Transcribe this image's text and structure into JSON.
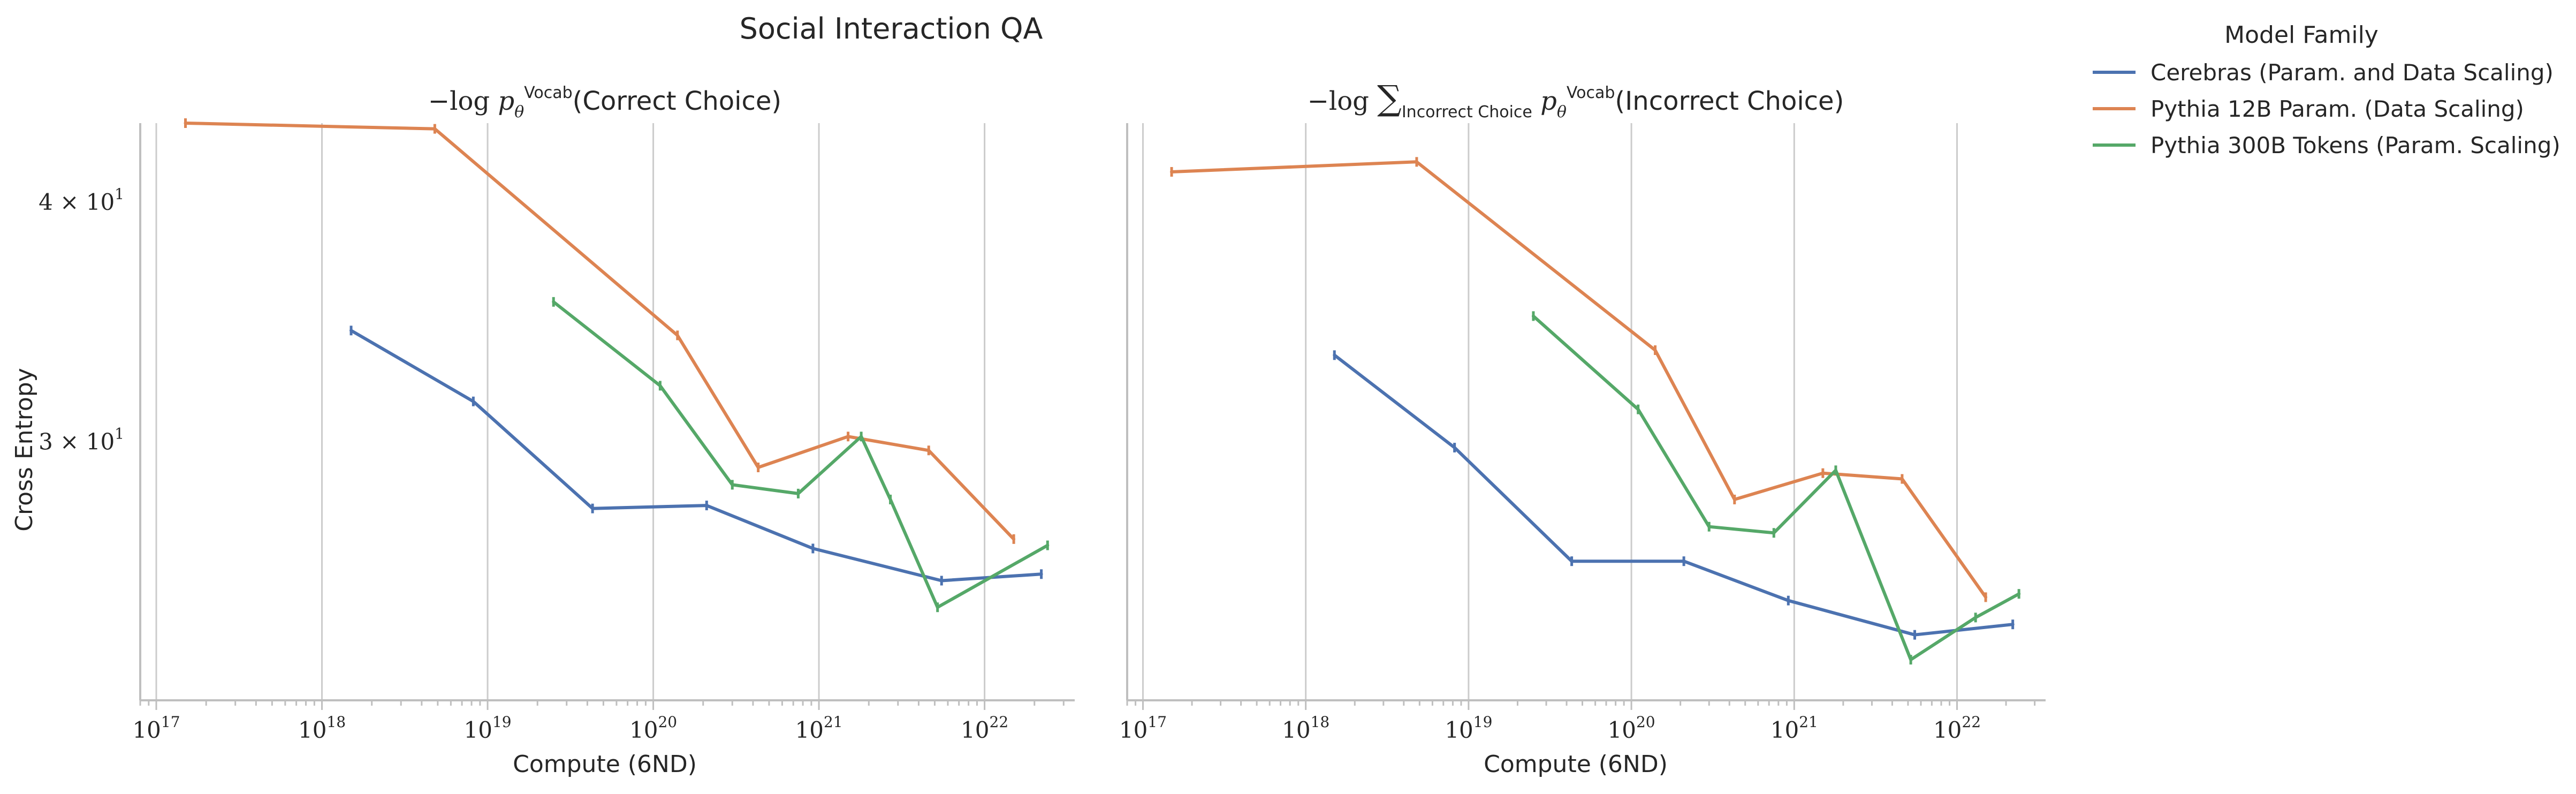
{
  "figure": {
    "title": "Social Interaction QA",
    "ylabel": "Cross Entropy",
    "legend_title": "Model Family",
    "legend_position": "outside-top-right"
  },
  "colors": {
    "Cerebras (Param. and Data Scaling)": "#4c72b0",
    "Pythia 12B Param. (Data Scaling)": "#dd8452",
    "Pythia 300B Tokens (Param. Scaling)": "#55a868",
    "grid": "#cccccc",
    "axis": "#bfbfbf"
  },
  "legend": [
    "Cerebras (Param. and Data Scaling)",
    "Pythia 12B Param. (Data Scaling)",
    "Pythia 300B Tokens (Param. Scaling)"
  ],
  "chart_data": [
    {
      "type": "line",
      "title": "−log p_θ^Vocab(Correct Choice)",
      "xlabel": "Compute (6ND)",
      "ylabel": "Cross Entropy",
      "x_scale": "log",
      "y_scale": "log",
      "xlim": [
        8e+16,
        3.5e+22
      ],
      "ylim": [
        22,
        44
      ],
      "grid": "x-major",
      "x_ticks": [
        1e+17,
        1e+18,
        1e+19,
        1e+20,
        1e+21,
        1e+22
      ],
      "x_tick_labels": [
        [
          "10",
          "17"
        ],
        [
          "10",
          "18"
        ],
        [
          "10",
          "19"
        ],
        [
          "10",
          "20"
        ],
        [
          "10",
          "21"
        ],
        [
          "10",
          "22"
        ]
      ],
      "y_ticks": [
        30,
        40
      ],
      "y_tick_labels": [
        [
          "3 × 10",
          "1"
        ],
        [
          "4 × 10",
          "1"
        ]
      ],
      "series": [
        {
          "name": "Cerebras (Param. and Data Scaling)",
          "x": [
            1.5e+18,
            8.2e+18,
            4.3e+19,
            2.1e+20,
            9.2e+20,
            5.5e+21,
            2.2e+22
          ],
          "y": [
            34.3,
            31.5,
            27.7,
            27.8,
            26.4,
            25.4,
            25.6
          ]
        },
        {
          "name": "Pythia 12B Param. (Data Scaling)",
          "x": [
            1.5e+17,
            4.8e+18,
            1.4e+20,
            4.3e+20,
            1.5e+21,
            4.6e+21,
            1.5e+22
          ],
          "y": [
            44.0,
            43.7,
            34.1,
            29.1,
            30.2,
            29.7,
            26.7
          ]
        },
        {
          "name": "Pythia 300B Tokens (Param. Scaling)",
          "x": [
            2.5e+19,
            1.1e+20,
            3e+20,
            7.5e+20,
            1.8e+21,
            2.7e+21,
            5.2e+21,
            2.4e+22
          ],
          "y": [
            35.5,
            32.1,
            28.5,
            28.2,
            30.2,
            28.0,
            24.6,
            26.5
          ]
        }
      ]
    },
    {
      "type": "line",
      "title": "−log Σ_{Incorrect Choice} p_θ^Vocab(Incorrect Choice)",
      "xlabel": "Compute (6ND)",
      "ylabel": "",
      "x_scale": "log",
      "y_scale": "log",
      "xlim": [
        8e+16,
        3.5e+22
      ],
      "ylim": [
        22,
        44
      ],
      "grid": "x-major",
      "x_ticks": [
        1e+17,
        1e+18,
        1e+19,
        1e+20,
        1e+21,
        1e+22
      ],
      "x_tick_labels": [
        [
          "10",
          "17"
        ],
        [
          "10",
          "18"
        ],
        [
          "10",
          "19"
        ],
        [
          "10",
          "20"
        ],
        [
          "10",
          "21"
        ],
        [
          "10",
          "22"
        ]
      ],
      "y_ticks": [],
      "y_tick_labels": [],
      "series": [
        {
          "name": "Cerebras (Param. and Data Scaling)",
          "x": [
            1.5e+18,
            8.2e+18,
            4.3e+19,
            2.1e+20,
            9.2e+20,
            5.5e+21,
            2.2e+22
          ],
          "y": [
            33.3,
            29.8,
            26.0,
            26.0,
            24.8,
            23.8,
            24.1
          ]
        },
        {
          "name": "Pythia 12B Param. (Data Scaling)",
          "x": [
            1.5e+17,
            4.8e+18,
            1.4e+20,
            4.3e+20,
            1.5e+21,
            4.6e+21,
            1.5e+22
          ],
          "y": [
            41.5,
            42.0,
            33.5,
            28.0,
            28.9,
            28.7,
            24.9
          ]
        },
        {
          "name": "Pythia 300B Tokens (Param. Scaling)",
          "x": [
            2.5e+19,
            1.1e+20,
            3e+20,
            7.5e+20,
            1.8e+21,
            5.2e+21,
            1.3e+22,
            2.4e+22
          ],
          "y": [
            34.9,
            31.2,
            27.1,
            26.9,
            29.0,
            23.1,
            24.3,
            25.0
          ]
        }
      ]
    }
  ]
}
